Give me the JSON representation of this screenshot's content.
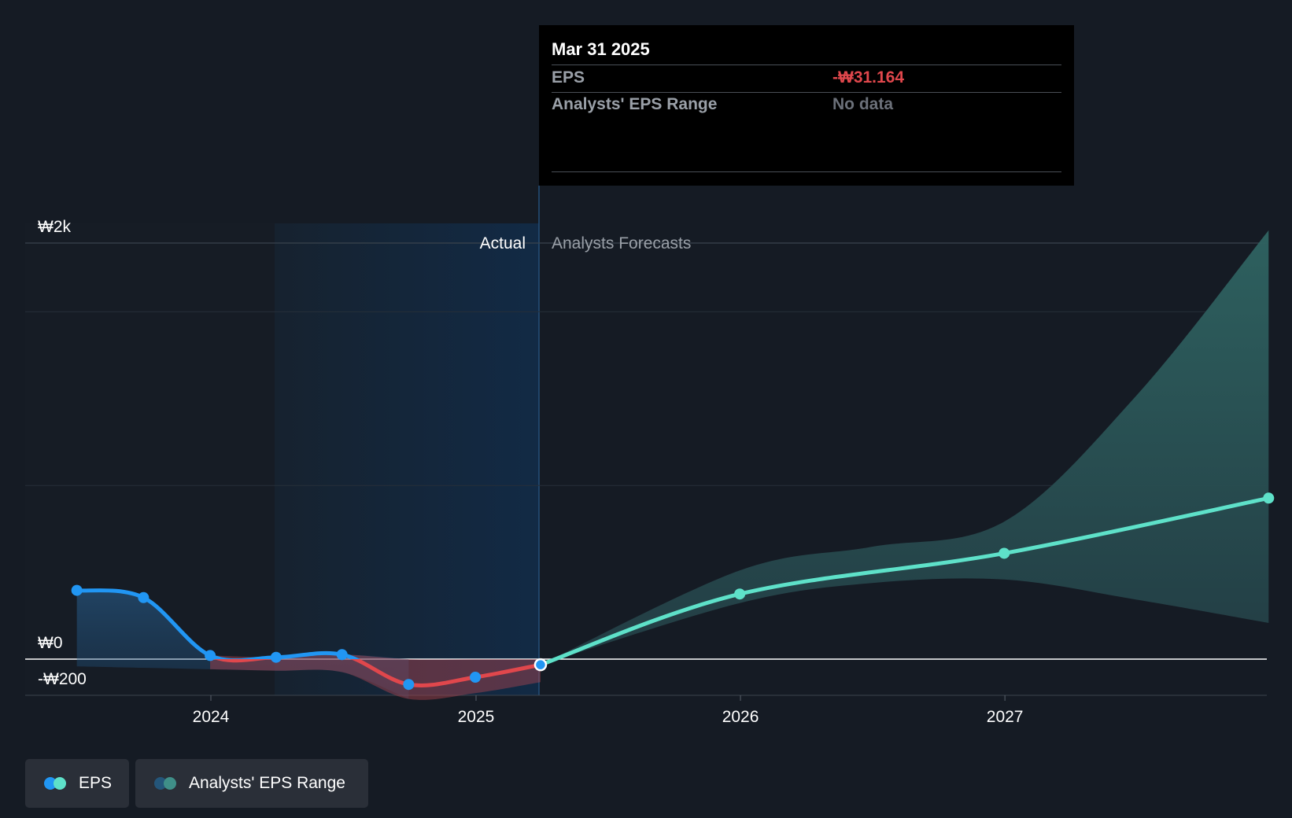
{
  "chart_data": {
    "type": "line",
    "title": "",
    "xlabel": "",
    "ylabel": "",
    "x_ticks": [
      "2024",
      "2025",
      "2026",
      "2027"
    ],
    "y_ticks": [
      "₩2k",
      "₩0",
      "-₩200"
    ],
    "sections": {
      "actual": "Actual",
      "forecast": "Analysts Forecasts"
    },
    "series": [
      {
        "name": "EPS",
        "role": "actual",
        "points": [
          {
            "x": "2023-06-30",
            "y": 380
          },
          {
            "x": "2023-09-30",
            "y": 340
          },
          {
            "x": "2023-12-31",
            "y": 20
          },
          {
            "x": "2024-03-31",
            "y": 10
          },
          {
            "x": "2024-06-30",
            "y": 25
          },
          {
            "x": "2024-09-30",
            "y": -140
          },
          {
            "x": "2024-12-31",
            "y": -100
          },
          {
            "x": "2025-03-31",
            "y": -31.164
          }
        ]
      },
      {
        "name": "EPS",
        "role": "forecast",
        "points": [
          {
            "x": "2025-03-31",
            "y": -31.164
          },
          {
            "x": "2025-12-31",
            "y": 360
          },
          {
            "x": "2026-12-31",
            "y": 585
          },
          {
            "x": "2027-12-31",
            "y": 890
          }
        ]
      },
      {
        "name": "Analysts' EPS Range",
        "role": "forecast-range",
        "points": [
          {
            "x": "2025-03-31",
            "low": -31,
            "high": -31
          },
          {
            "x": "2025-12-31",
            "low": 310,
            "high": 490
          },
          {
            "x": "2026-06-30",
            "low": 420,
            "high": 620
          },
          {
            "x": "2026-12-31",
            "low": 440,
            "high": 760
          },
          {
            "x": "2027-06-30",
            "low": 330,
            "high": 1450
          },
          {
            "x": "2027-12-31",
            "low": 200,
            "high": 2370
          }
        ]
      }
    ],
    "colors": {
      "eps_positive": "#2196f3",
      "eps_negative": "#e0474c",
      "forecast": "#5ee1c9",
      "range_fill": "#2a4e50",
      "actual_band": "#132b45"
    }
  },
  "tooltip": {
    "date": "Mar 31 2025",
    "rows": [
      {
        "label": "EPS",
        "value": "-₩31.164",
        "color": "#e0474c"
      },
      {
        "label": "Analysts' EPS Range",
        "value": "No data",
        "color": "#6b7079"
      }
    ]
  },
  "legend": [
    {
      "label": "EPS",
      "colors": [
        "#2196f3",
        "#5ee1c9"
      ]
    },
    {
      "label": "Analysts' EPS Range",
      "colors": [
        "#24567a",
        "#3f8f88"
      ]
    }
  ]
}
